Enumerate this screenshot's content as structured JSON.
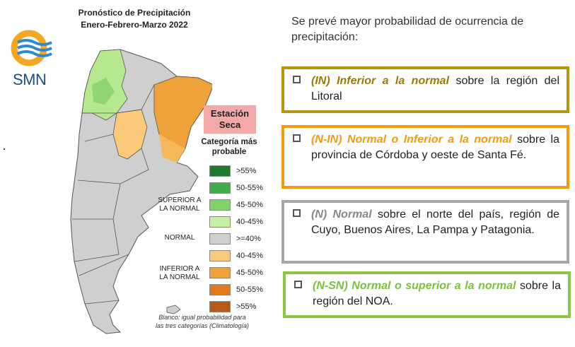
{
  "map": {
    "title_line1": "Pronóstico de Precipitación",
    "title_line2": "Enero-Febrero-Marzo 2022"
  },
  "logo": {
    "text": "SMN"
  },
  "season_label_line1": "Estación",
  "season_label_line2": "Seca",
  "legend": {
    "title_line1": "Categoría más",
    "title_line2": "probable",
    "groups": {
      "superior_line1": "SUPERIOR A",
      "superior_line2": "LA NORMAL",
      "normal": "NORMAL",
      "inferior_line1": "INFERIOR A",
      "inferior_line2": "LA NORMAL"
    },
    "items": [
      {
        "label": ">55%",
        "color": "#1f7a2e"
      },
      {
        "label": "50-55%",
        "color": "#3fae4a"
      },
      {
        "label": "45-50%",
        "color": "#7fd36a"
      },
      {
        "label": "40-45%",
        "color": "#c8f0a4"
      },
      {
        "label": ">=40%",
        "color": "#cfcfcf"
      },
      {
        "label": "40-45%",
        "color": "#fbc97a"
      },
      {
        "label": "45-50%",
        "color": "#f0a23a"
      },
      {
        "label": "50-55%",
        "color": "#e07a1f"
      },
      {
        "label": ">55%",
        "color": "#b55a1a"
      }
    ]
  },
  "note_line1": "Blanco: igual probabilidad para",
  "note_line2": "las tres categorías (Climatología)",
  "intro": "Se prevé mayor probabilidad de ocurrencia de precipitación:",
  "boxes": [
    {
      "kw": "(IN) Inferior a la normal",
      "rest": " sobre la región del Litoral",
      "border": "#b8960c",
      "kwcolor": "#9a7a0a"
    },
    {
      "kw": "(N-IN) Normal o Inferior a la normal",
      "rest": " sobre la provincia de Córdoba y oeste de Santa Fé.",
      "border": "#f39c12",
      "kwcolor": "#f39c12"
    },
    {
      "kw": "(N) Normal",
      "rest": " sobre el norte del país, región de Cuyo, Buenos Aires, La Pampa y Patagonia.",
      "border": "#a8a8a8",
      "kwcolor": "#888888"
    },
    {
      "kw": "(N-SN) Normal o superior a la normal",
      "rest": " sobre la región del NOA.",
      "border": "#8dc63f",
      "kwcolor": "#7cbf3a"
    }
  ]
}
